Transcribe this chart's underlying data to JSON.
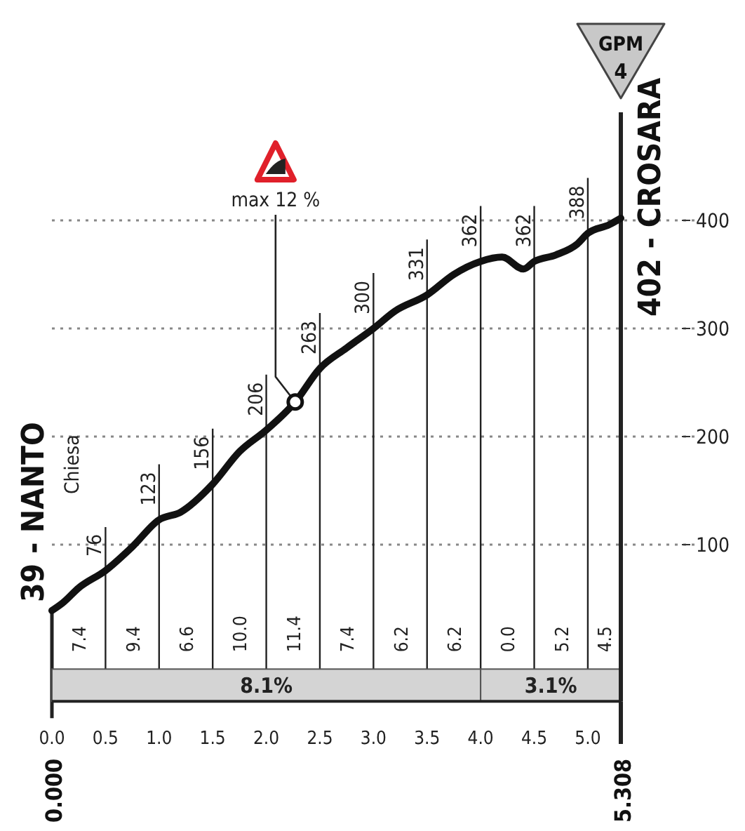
{
  "chart_data": {
    "type": "line",
    "xlim": [
      0,
      5.308
    ],
    "ylim": [
      -45,
      500
    ],
    "xticks": [
      {
        "value": 0,
        "label": "0.0"
      },
      {
        "value": 0.5,
        "label": "0.5"
      },
      {
        "value": 1,
        "label": "1.0"
      },
      {
        "value": 1.5,
        "label": "1.5"
      },
      {
        "value": 2,
        "label": "2.0"
      },
      {
        "value": 2.5,
        "label": "2.5"
      },
      {
        "value": 3,
        "label": "3.0"
      },
      {
        "value": 3.5,
        "label": "3.5"
      },
      {
        "value": 4,
        "label": "4.0"
      },
      {
        "value": 4.5,
        "label": "4.5"
      },
      {
        "value": 5,
        "label": "5.0"
      }
    ],
    "yticks": [
      100,
      200,
      300,
      400
    ],
    "grid": true,
    "marker": "none",
    "line_style": "solid",
    "x": [
      0,
      0.1,
      0.25,
      0.5,
      0.75,
      1,
      1.2,
      1.5,
      1.75,
      2,
      2.27,
      2.5,
      2.75,
      3,
      3.2,
      3.5,
      3.75,
      4,
      4.2,
      4.4,
      4.5,
      4.7,
      4.9,
      5,
      5.2,
      5.308
    ],
    "series": [
      {
        "color": "#111111",
        "values": [
          39,
          46,
          60,
          76,
          98,
          123,
          130,
          156,
          186,
          206,
          232,
          263,
          282,
          300,
          316,
          331,
          350,
          362,
          366,
          355,
          362,
          368,
          378,
          388,
          396,
          402
        ],
        "value_labels": [
          null,
          null,
          null,
          "76",
          null,
          "123",
          null,
          "156",
          null,
          "206",
          null,
          "263",
          null,
          "300",
          null,
          "331",
          null,
          "362",
          null,
          null,
          "362",
          null,
          null,
          "388",
          null,
          null
        ]
      }
    ],
    "bands": [
      {
        "axis": "x",
        "from": 0,
        "to": 4,
        "label": "8.1%",
        "color": "#d4d4d4"
      },
      {
        "axis": "x",
        "from": 4,
        "to": 5.308,
        "label": "3.1%",
        "color": "#d4d4d4"
      }
    ],
    "annotations": [
      {
        "text": "39 - NANTO",
        "x": 0,
        "y": 39
      },
      {
        "text": "402 - CROSARA",
        "x": 5.308,
        "y": 402
      },
      "Chiesa",
      {
        "text": "max 12 %",
        "x": 2.27,
        "y": 232
      },
      "GPM",
      "4",
      "0.000",
      "5.308",
      "7.4",
      "9.4",
      "6.6",
      "10.0",
      "11.4",
      "7.4",
      "6.2",
      "6.2",
      "0.0",
      "5.2",
      "4.5"
    ]
  }
}
